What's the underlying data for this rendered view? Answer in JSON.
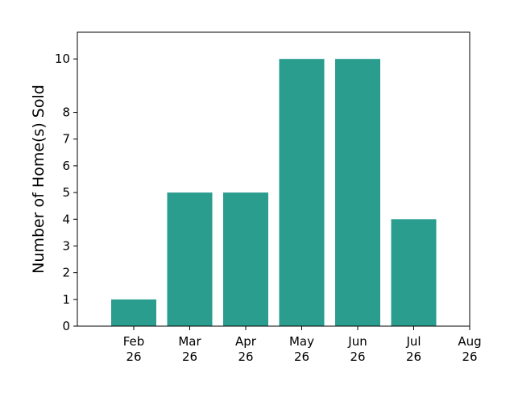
{
  "chart_data": {
    "type": "bar",
    "categories": [
      "Feb\n26",
      "Mar\n26",
      "Apr\n26",
      "May\n26",
      "Jun\n26",
      "Jul\n26"
    ],
    "values": [
      1,
      5,
      5,
      10,
      10,
      4
    ],
    "extra_x_tick": "Aug\n26",
    "title": "",
    "xlabel": "",
    "ylabel": "Number of Home(s) Sold",
    "y_ticks": [
      0,
      1,
      2,
      3,
      4,
      5,
      6,
      7,
      8,
      10
    ],
    "ylim": [
      0,
      11
    ],
    "bar_color": "#2a9d8f",
    "grid": false,
    "legend": "none"
  }
}
